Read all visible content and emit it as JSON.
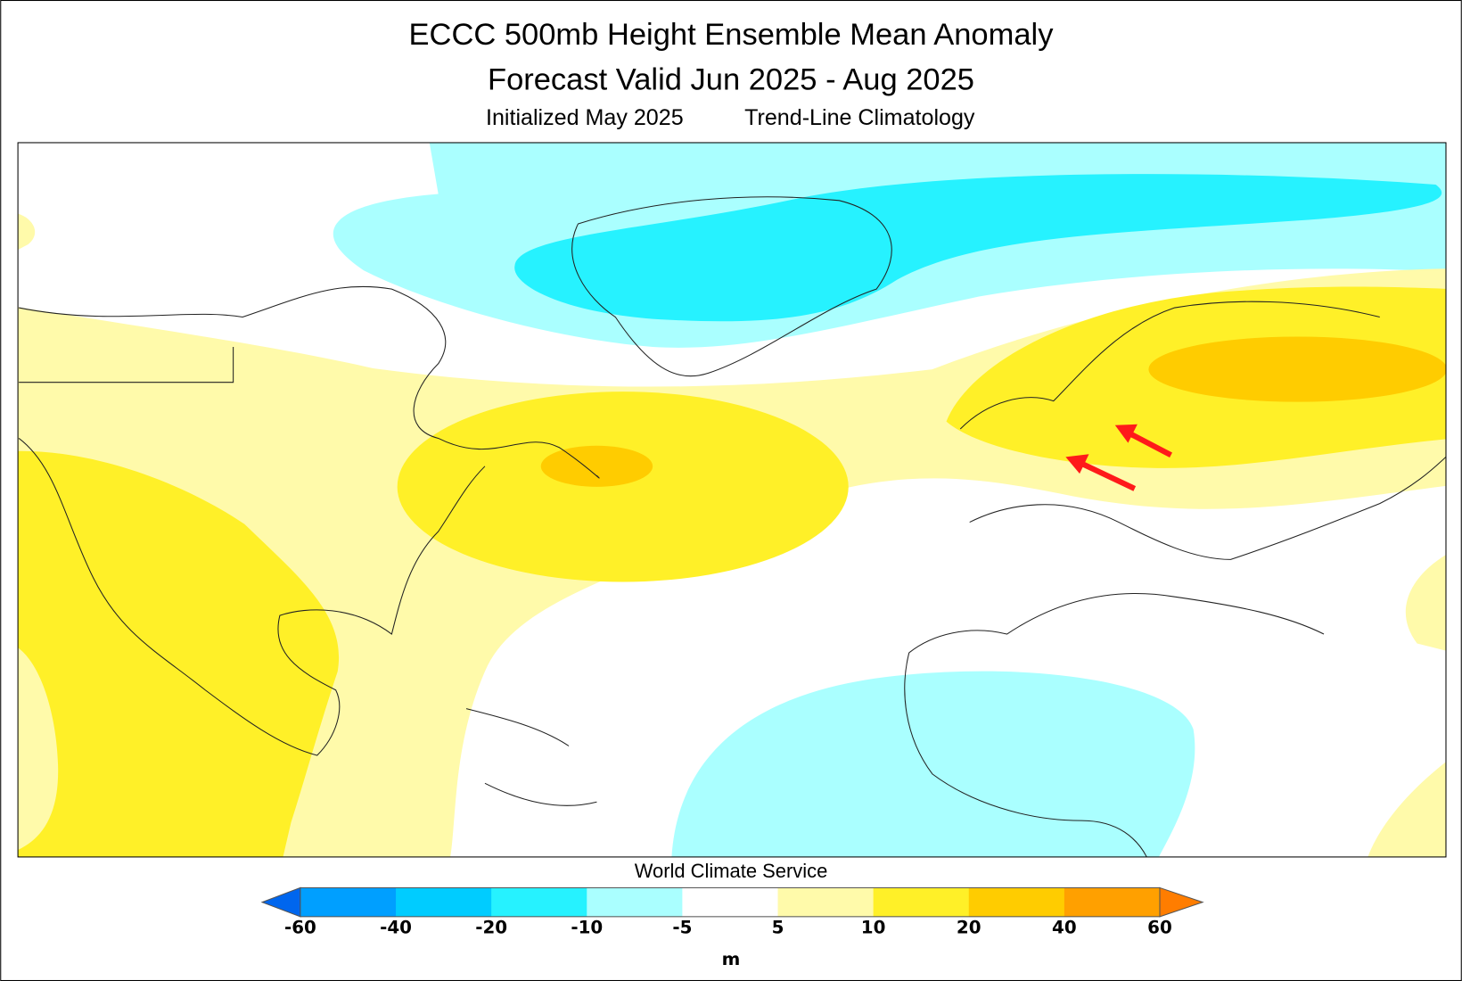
{
  "title": {
    "line1": "ECCC 500mb Height Ensemble Mean Anomaly",
    "line2": "Forecast Valid Jun 2025 - Aug 2025",
    "initialized": "Initialized May 2025",
    "climatology": "Trend-Line Climatology"
  },
  "credit": "World Climate Service",
  "colorbar": {
    "unit": "m",
    "ticks": [
      "-60",
      "-40",
      "-20",
      "-10",
      "-5",
      "5",
      "10",
      "20",
      "40",
      "60"
    ],
    "colors": {
      "below_min": "#0066ee",
      "n60_n40": "#009fff",
      "n40_n20": "#00ccff",
      "n20_n10": "#26f2ff",
      "n10_n5": "#aaffff",
      "n5_5": "#ffffff",
      "p5_10": "#fffaaa",
      "p10_20": "#fff028",
      "p20_40": "#ffcc00",
      "p40_60": "#ffa000",
      "above_max": "#ff7d00"
    }
  },
  "annotations": {
    "arrow_color": "#ff1a1a",
    "arrow_count": 2
  }
}
